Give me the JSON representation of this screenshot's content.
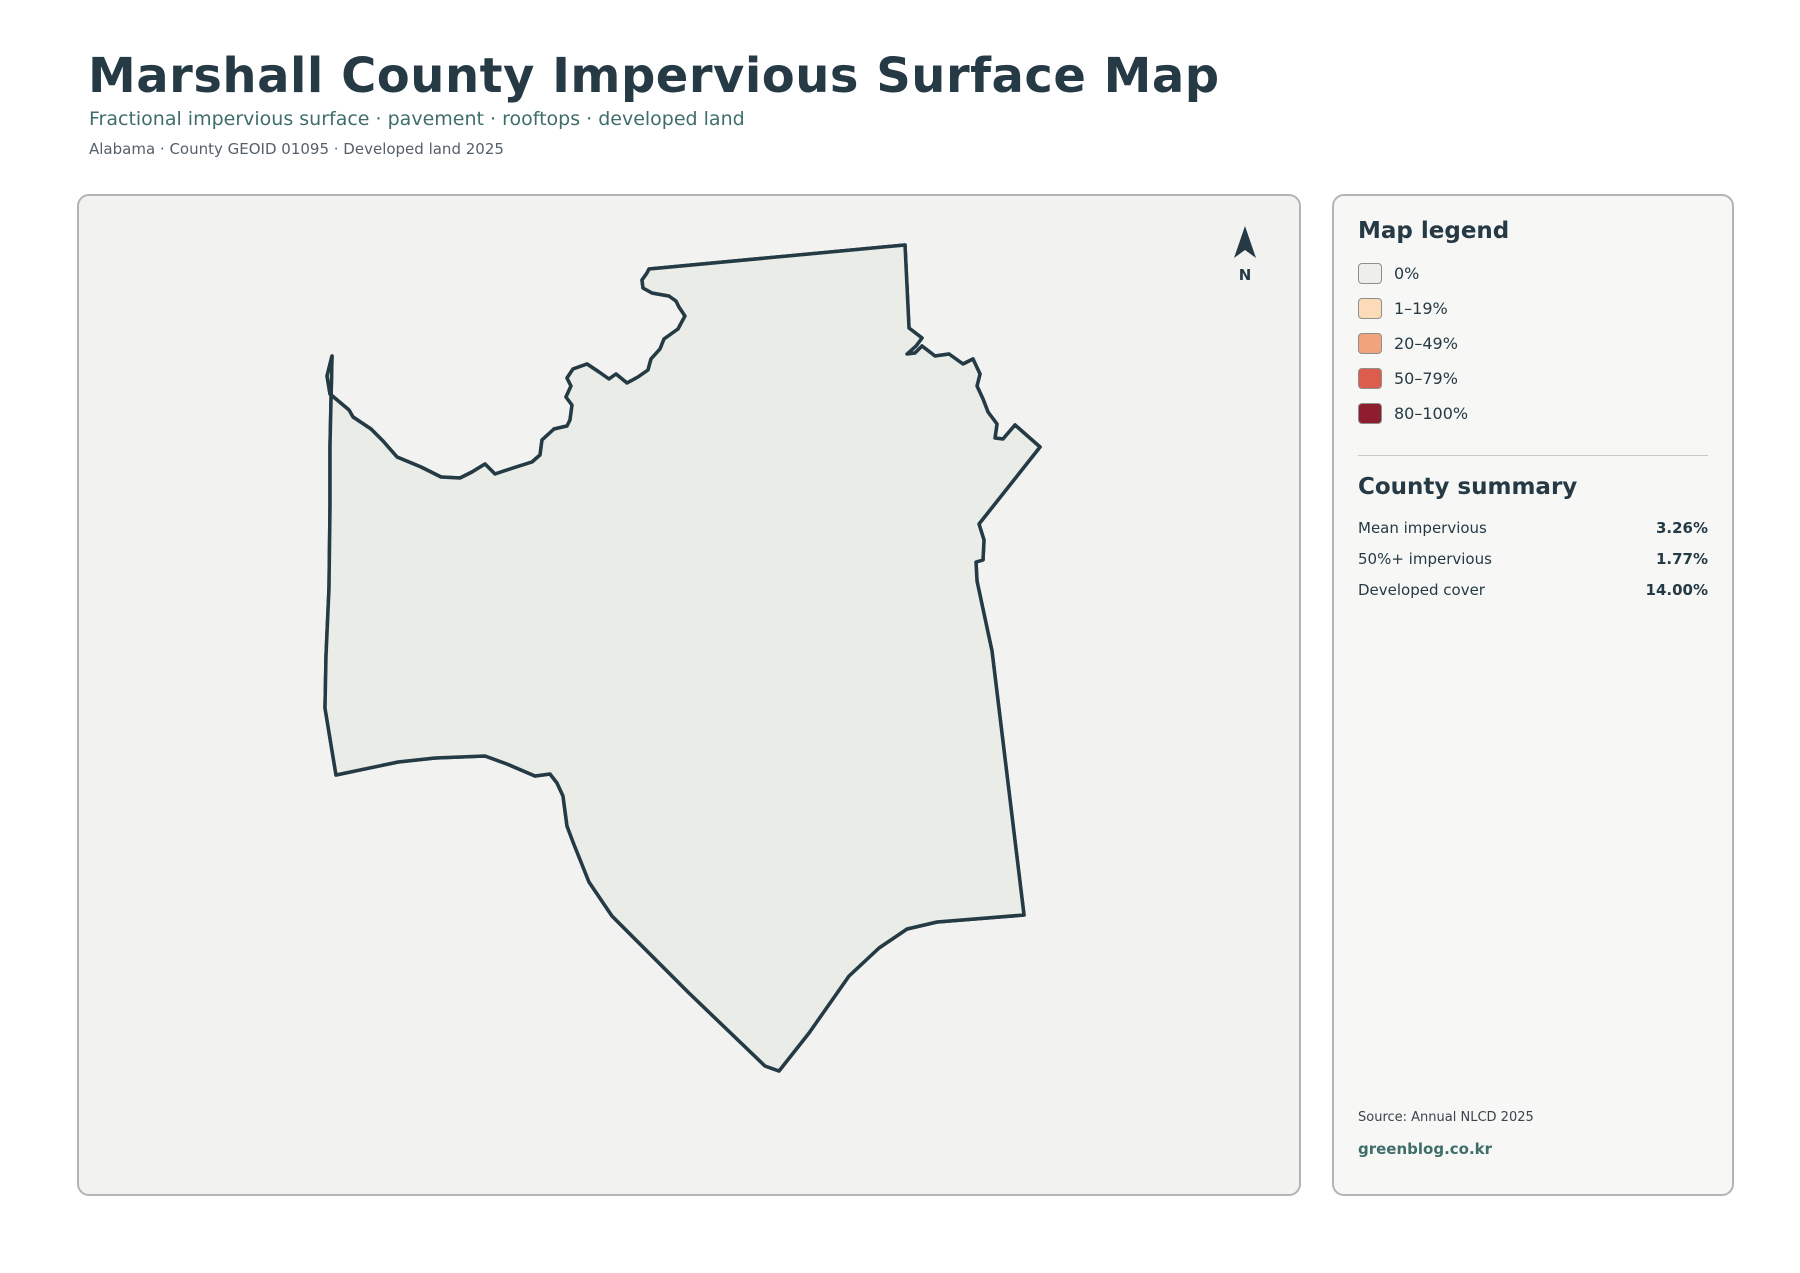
{
  "header": {
    "title": "Marshall County Impervious Surface Map",
    "subtitle": "Fractional impervious surface · pavement · rooftops · developed land",
    "meta": "Alabama · County GEOID 01095 · Developed land 2025"
  },
  "map": {
    "north_label": "N",
    "county_fill": "#e9ece7",
    "county_outline": "#243a44",
    "panel_background": "#f2f2f0"
  },
  "legend": {
    "title": "Map legend",
    "items": [
      {
        "label": "0%",
        "color": "#eeeeea"
      },
      {
        "label": "1–19%",
        "color": "#fcdcb8"
      },
      {
        "label": "20–49%",
        "color": "#f1a47c"
      },
      {
        "label": "50–79%",
        "color": "#dc5d4c"
      },
      {
        "label": "80–100%",
        "color": "#8f1d30"
      }
    ]
  },
  "summary": {
    "title": "County summary",
    "rows": [
      {
        "label": "Mean impervious",
        "value": "3.26%"
      },
      {
        "label": "50%+ impervious",
        "value": "1.77%"
      },
      {
        "label": "Developed cover",
        "value": "14.00%"
      }
    ]
  },
  "footer": {
    "source": "Source: Annual NLCD 2025",
    "brand": "greenblog.co.kr"
  }
}
